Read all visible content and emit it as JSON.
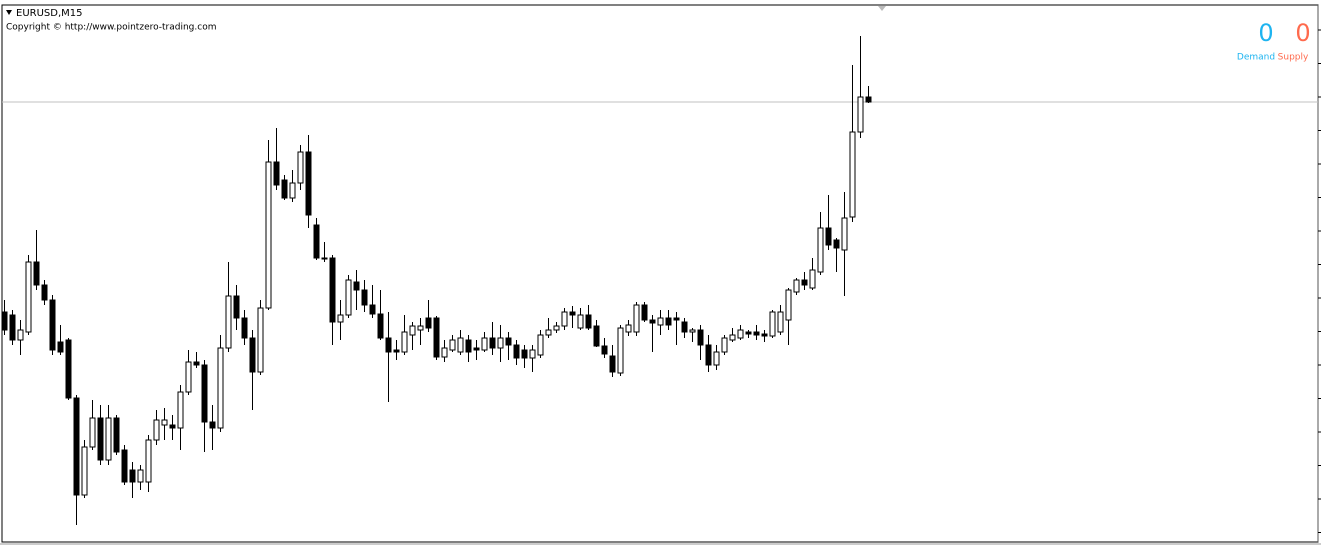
{
  "chart_data": {
    "type": "candlestick",
    "title": "EURUSD,M15",
    "subtitle": "Copyright © http://www.pointzero-trading.com",
    "open": [
      229,
      226,
      201,
      209,
      279,
      256,
      241,
      199,
      201,
      143,
      46,
      94,
      123,
      81,
      123,
      91,
      71,
      59,
      59,
      101,
      116,
      116,
      113,
      149,
      179,
      176,
      119,
      113,
      193,
      245,
      223,
      203,
      169,
      233,
      379,
      361,
      343,
      358,
      389,
      316,
      283,
      283,
      219,
      226,
      259,
      251,
      236,
      227,
      203,
      191,
      189,
      206,
      211,
      223,
      223,
      184,
      191,
      189,
      201,
      193,
      191,
      203,
      193,
      203,
      196,
      191,
      183,
      186,
      206,
      211,
      215,
      229,
      213,
      226,
      215,
      195,
      185,
      168,
      209,
      209,
      236,
      221,
      216,
      223,
      223,
      219,
      209,
      211,
      196,
      176,
      189,
      201,
      203,
      209,
      209,
      207,
      205,
      209,
      221,
      249,
      261,
      253,
      269,
      313,
      301,
      291,
      324,
      409,
      444
    ],
    "high": [
      241,
      231,
      221,
      286,
      311,
      261,
      246,
      216,
      203,
      146,
      101,
      141,
      136,
      136,
      126,
      96,
      79,
      76,
      106,
      131,
      133,
      126,
      156,
      191,
      189,
      181,
      136,
      206,
      279,
      256,
      231,
      211,
      241,
      401,
      413,
      366,
      371,
      396,
      406,
      323,
      299,
      286,
      241,
      266,
      271,
      261,
      256,
      251,
      229,
      201,
      226,
      219,
      223,
      241,
      225,
      201,
      206,
      211,
      206,
      201,
      209,
      219,
      216,
      209,
      201,
      196,
      196,
      211,
      223,
      219,
      233,
      235,
      233,
      236,
      221,
      203,
      196,
      216,
      221,
      239,
      239,
      226,
      231,
      231,
      229,
      223,
      213,
      216,
      206,
      196,
      206,
      213,
      216,
      211,
      216,
      211,
      231,
      236,
      253,
      263,
      269,
      283,
      329,
      346,
      303,
      349,
      476,
      505,
      455
    ],
    "low": [
      206,
      196,
      186,
      206,
      251,
      236,
      186,
      186,
      141,
      16,
      43,
      91,
      76,
      76,
      86,
      56,
      43,
      51,
      49,
      96,
      101,
      101,
      91,
      146,
      173,
      89,
      91,
      109,
      189,
      211,
      196,
      131,
      166,
      231,
      351,
      341,
      339,
      351,
      313,
      281,
      279,
      196,
      201,
      223,
      231,
      229,
      223,
      201,
      139,
      181,
      186,
      191,
      196,
      209,
      181,
      179,
      189,
      186,
      179,
      181,
      189,
      186,
      179,
      181,
      176,
      173,
      169,
      183,
      203,
      208,
      211,
      213,
      211,
      211,
      194,
      183,
      164,
      165,
      205,
      205,
      219,
      189,
      206,
      211,
      196,
      203,
      199,
      181,
      169,
      171,
      186,
      199,
      201,
      203,
      201,
      199,
      203,
      206,
      196,
      246,
      251,
      251,
      266,
      291,
      269,
      245,
      319,
      403,
      438
    ],
    "close": [
      211,
      201,
      211,
      279,
      256,
      241,
      191,
      189,
      143,
      46,
      94,
      123,
      81,
      123,
      89,
      59,
      59,
      71,
      101,
      121,
      121,
      113,
      149,
      179,
      176,
      119,
      113,
      193,
      245,
      223,
      203,
      169,
      233,
      379,
      356,
      343,
      358,
      389,
      326,
      283,
      283,
      219,
      226,
      261,
      251,
      236,
      227,
      203,
      189,
      189,
      209,
      215,
      215,
      213,
      184,
      193,
      201,
      203,
      189,
      191,
      203,
      193,
      203,
      196,
      183,
      183,
      191,
      206,
      211,
      215,
      229,
      226,
      226,
      213,
      195,
      187,
      169,
      213,
      216,
      236,
      221,
      218,
      223,
      216,
      221,
      209,
      211,
      196,
      176,
      189,
      203,
      206,
      211,
      207,
      206,
      205,
      229,
      229,
      251,
      261,
      256,
      271,
      313,
      296,
      293,
      323,
      409,
      444,
      439
    ],
    "ylim": [
      0,
      535
    ],
    "price_line": 439,
    "up_color": "#ffffff",
    "down_color": "#000000",
    "indicators": [
      {
        "name": "Demand",
        "value": 0,
        "color": "#1eb4f0"
      },
      {
        "name": "Supply",
        "value": 0,
        "color": "#ff6a4d"
      }
    ]
  }
}
